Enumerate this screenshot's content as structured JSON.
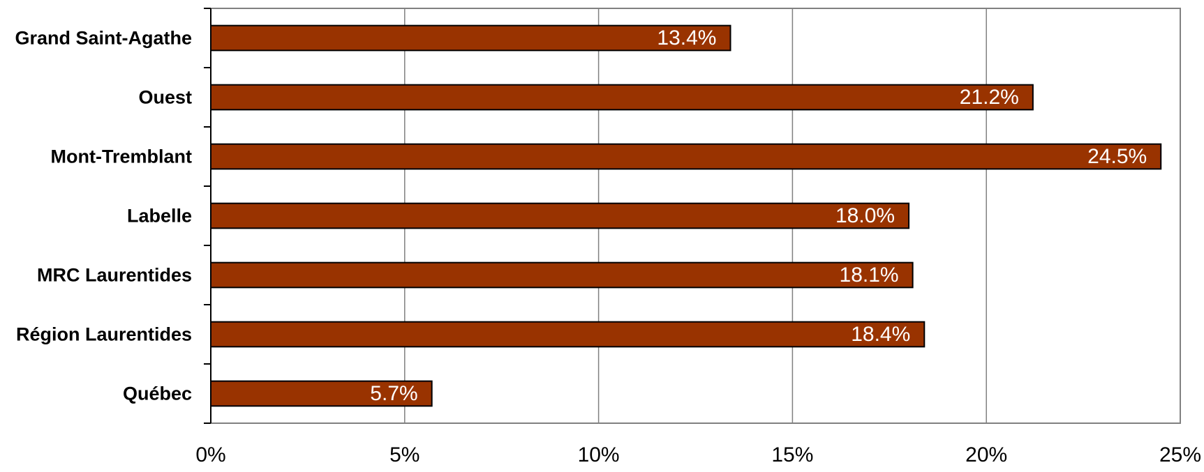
{
  "chart_data": {
    "type": "bar",
    "orientation": "horizontal",
    "categories": [
      "Grand Saint-Agathe",
      "Ouest",
      "Mont-Tremblant",
      "Labelle",
      "MRC Laurentides",
      "Région Laurentides",
      "Québec"
    ],
    "values": [
      13.4,
      21.2,
      24.5,
      18.0,
      18.1,
      18.4,
      5.7
    ],
    "data_labels": [
      "13.4%",
      "21.2%",
      "24.5%",
      "18.0%",
      "18.1%",
      "18.4%",
      "5.7%"
    ],
    "x_ticks": [
      0,
      5,
      10,
      15,
      20,
      25
    ],
    "x_tick_labels": [
      "0%",
      "5%",
      "10%",
      "15%",
      "20%",
      "25%"
    ],
    "xlim": [
      0,
      25
    ],
    "title": "",
    "xlabel": "",
    "ylabel": "",
    "grid": "vertical",
    "legend": "none",
    "colors": {
      "bar": "#993300",
      "bar_border": "#000000",
      "grid": "#808080",
      "frame": "#808080",
      "data_label": "#ffffff"
    }
  }
}
